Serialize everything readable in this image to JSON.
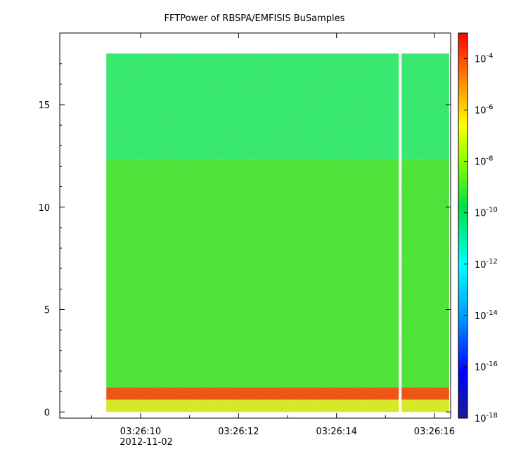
{
  "chart_data": {
    "type": "heatmap",
    "title": "FFTPower of RBSPA/EMFISIS  BuSamples",
    "xlabel": "",
    "ylabel": "",
    "x_tick_labels": [
      "03:26:10",
      "03:26:12",
      "03:26:14",
      "03:26:16"
    ],
    "x_date_label": "2012-11-02",
    "y_ticks": [
      0,
      5,
      10,
      15
    ],
    "ylim": [
      -0.3,
      18.5
    ],
    "data_extent": {
      "x_start": "03:26:09.3",
      "x_end": "03:26:16.3",
      "y_min": 0,
      "y_max": 17.5
    },
    "gap_time": "03:26:15.3",
    "colorbar": {
      "scale": "log",
      "ticks": [
        {
          "base": "10",
          "exp": "-4"
        },
        {
          "base": "10",
          "exp": "-6"
        },
        {
          "base": "10",
          "exp": "-8"
        },
        {
          "base": "10",
          "exp": "-10"
        },
        {
          "base": "10",
          "exp": "-12"
        },
        {
          "base": "10",
          "exp": "-14"
        },
        {
          "base": "10",
          "exp": "-16"
        },
        {
          "base": "10",
          "exp": "-18"
        }
      ],
      "range": [
        "1e-18",
        "1e-3"
      ]
    },
    "bands": [
      {
        "y_from": 12.3,
        "y_to": 17.5,
        "level": "1e-11",
        "color": "#2ee86e"
      },
      {
        "y_from": 1.2,
        "y_to": 12.3,
        "level": "1e-10",
        "color": "#46e234"
      },
      {
        "y_from": 0.6,
        "y_to": 1.2,
        "level": "1e-5",
        "color": "#f04a10"
      },
      {
        "y_from": 0.0,
        "y_to": 0.6,
        "level": "1e-8",
        "color": "#d8e820"
      }
    ],
    "grid": false,
    "legend": "colorbar-right"
  }
}
